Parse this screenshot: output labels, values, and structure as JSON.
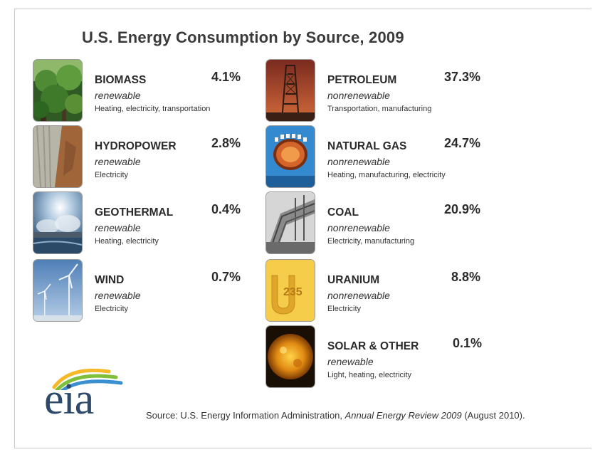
{
  "title": "U.S. Energy Consumption by Source, 2009",
  "sources": [
    {
      "name": "BIOMASS",
      "percent": "4.1%",
      "type": "renewable",
      "uses": "Heating, electricity, transportation",
      "image_icon": "forest-icon"
    },
    {
      "name": "HYDROPOWER",
      "percent": "2.8%",
      "type": "renewable",
      "uses": "Electricity",
      "image_icon": "dam-icon"
    },
    {
      "name": "GEOTHERMAL",
      "percent": "0.4%",
      "type": "renewable",
      "uses": "Heating, electricity",
      "image_icon": "steam-plant-icon"
    },
    {
      "name": "WIND",
      "percent": "0.7%",
      "type": "renewable",
      "uses": "Electricity",
      "image_icon": "wind-turbine-icon"
    },
    {
      "name": "PETROLEUM",
      "percent": "37.3%",
      "type": "nonrenewable",
      "uses": "Transportation, manufacturing",
      "image_icon": "oil-rig-icon"
    },
    {
      "name": "NATURAL GAS",
      "percent": "24.7%",
      "type": "nonrenewable",
      "uses": "Heating, manufacturing, electricity",
      "image_icon": "gas-flame-icon"
    },
    {
      "name": "COAL",
      "percent": "20.9%",
      "type": "nonrenewable",
      "uses": "Electricity, manufacturing",
      "image_icon": "coal-conveyor-icon"
    },
    {
      "name": "URANIUM",
      "percent": "8.8%",
      "type": "nonrenewable",
      "uses": "Electricity",
      "image_icon": "uranium-235-icon"
    },
    {
      "name": "SOLAR & OTHER",
      "percent": "0.1%",
      "type": "renewable",
      "uses": "Light, heating, electricity",
      "image_icon": "sun-icon"
    }
  ],
  "uranium_label": "235",
  "logo_text": "eia",
  "source_note": {
    "prefix": "Source: U.S. Energy Information Administration, ",
    "publication": "Annual Energy Review 2009",
    "suffix": " (August 2010)."
  }
}
